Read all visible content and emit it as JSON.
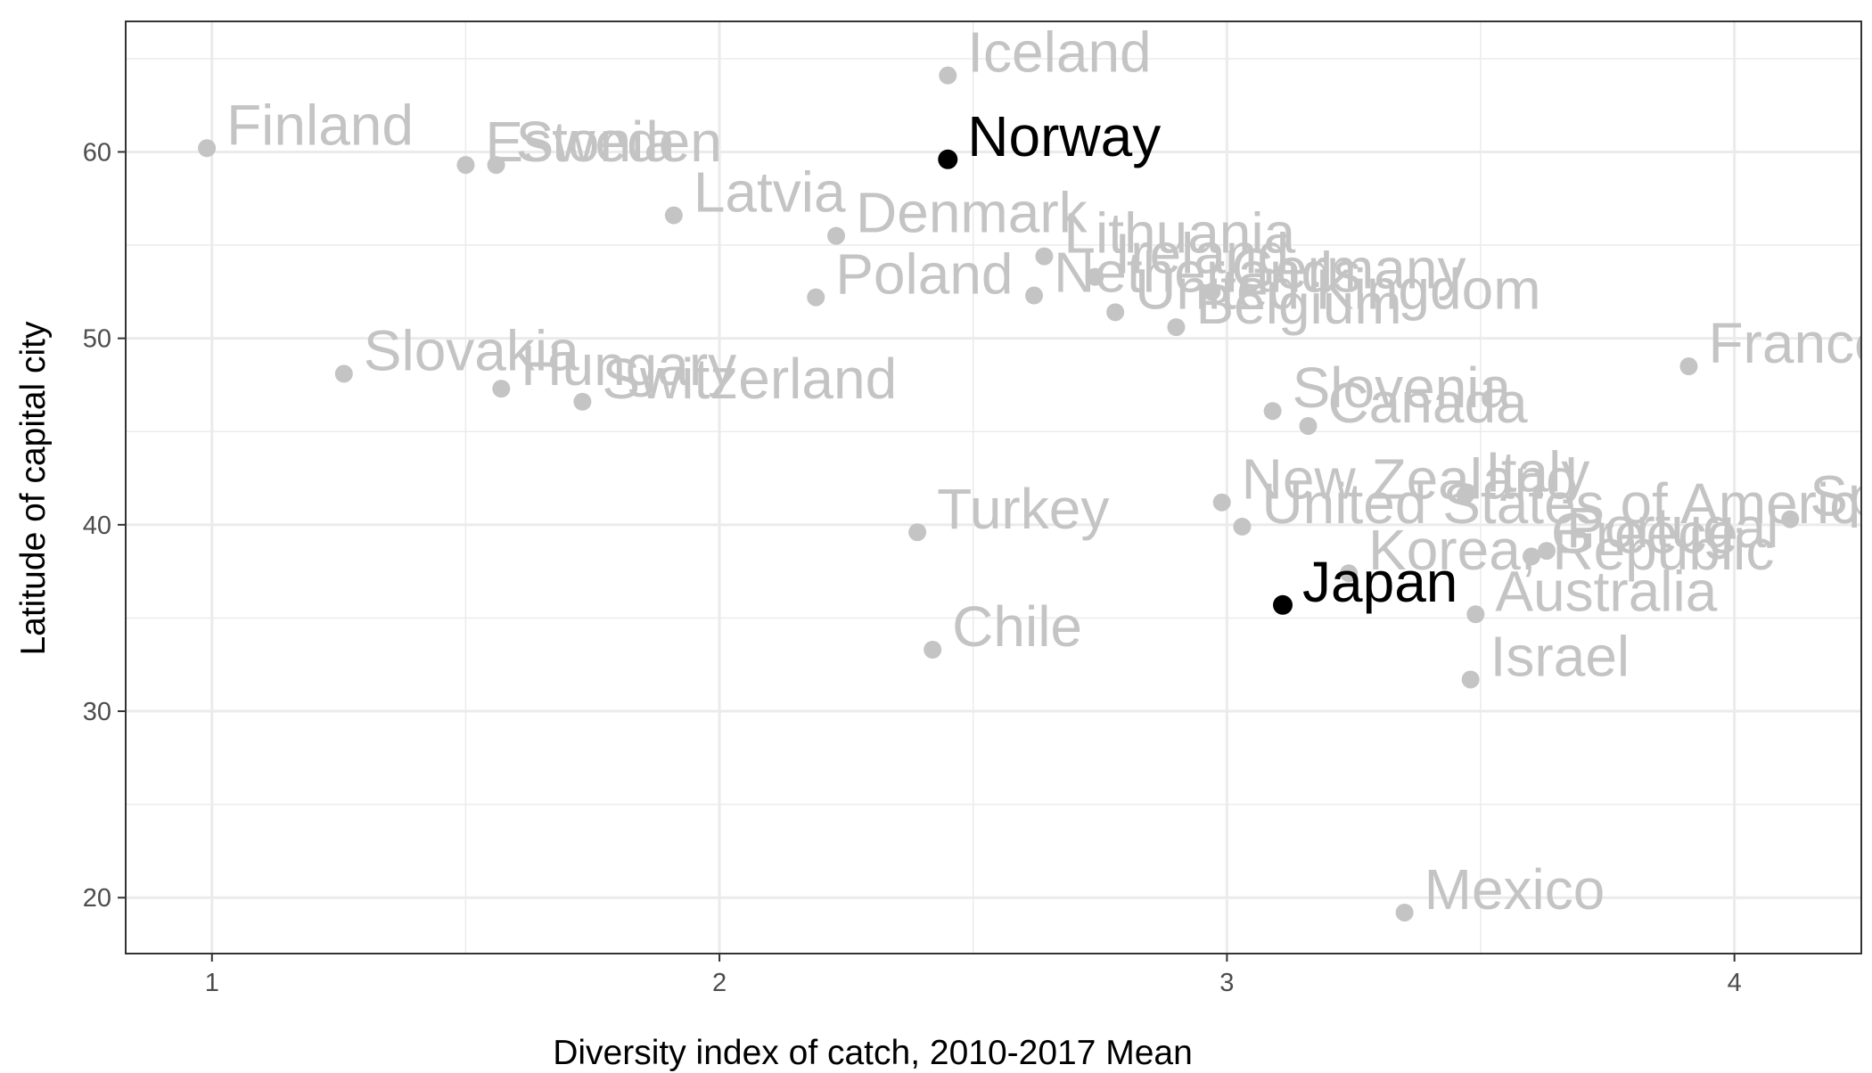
{
  "chart_data": {
    "type": "scatter",
    "xlabel": "Diversity index of catch, 2010-2017 Mean",
    "ylabel": "Latitude of capital city",
    "xlim": [
      0.83,
      4.25
    ],
    "ylim": [
      17,
      67
    ],
    "x_ticks": [
      1,
      2,
      3,
      4
    ],
    "y_ticks": [
      20,
      30,
      40,
      50,
      60
    ],
    "grid": true,
    "legend": "none",
    "colors": {
      "highlight": "#000000",
      "muted": "#c4c4c4",
      "grid": "#ebebeb",
      "panel_border": "#333333"
    },
    "points": [
      {
        "label": "Iceland",
        "x": 2.45,
        "y": 64.1,
        "highlight": false
      },
      {
        "label": "Finland",
        "x": 0.99,
        "y": 60.2,
        "highlight": false
      },
      {
        "label": "Estonia",
        "x": 1.5,
        "y": 59.3,
        "highlight": false
      },
      {
        "label": "Sweden",
        "x": 1.56,
        "y": 59.3,
        "highlight": false
      },
      {
        "label": "Norway",
        "x": 2.45,
        "y": 59.6,
        "highlight": true
      },
      {
        "label": "Latvia",
        "x": 1.91,
        "y": 56.6,
        "highlight": false
      },
      {
        "label": "Denmark",
        "x": 2.23,
        "y": 55.5,
        "highlight": false
      },
      {
        "label": "Lithuania",
        "x": 2.64,
        "y": 54.4,
        "highlight": false
      },
      {
        "label": "Ireland",
        "x": 2.74,
        "y": 53.3,
        "highlight": false
      },
      {
        "label": "Poland",
        "x": 2.19,
        "y": 52.2,
        "highlight": false
      },
      {
        "label": "Netherlands",
        "x": 2.62,
        "y": 52.3,
        "highlight": false
      },
      {
        "label": "Germany",
        "x": 2.97,
        "y": 52.5,
        "highlight": false
      },
      {
        "label": "United Kingdom",
        "x": 2.78,
        "y": 51.4,
        "highlight": false
      },
      {
        "label": "Belgium",
        "x": 2.9,
        "y": 50.6,
        "highlight": false
      },
      {
        "label": "France",
        "x": 3.91,
        "y": 48.5,
        "highlight": false
      },
      {
        "label": "Slovakia",
        "x": 1.26,
        "y": 48.1,
        "highlight": false
      },
      {
        "label": "Hungary",
        "x": 1.57,
        "y": 47.3,
        "highlight": false
      },
      {
        "label": "Switzerland",
        "x": 1.73,
        "y": 46.6,
        "highlight": false
      },
      {
        "label": "Slovenia",
        "x": 3.09,
        "y": 46.1,
        "highlight": false
      },
      {
        "label": "Canada",
        "x": 3.16,
        "y": 45.3,
        "highlight": false
      },
      {
        "label": "New Zealand",
        "x": 2.99,
        "y": 41.2,
        "highlight": false
      },
      {
        "label": "Italy",
        "x": 3.47,
        "y": 41.6,
        "highlight": false
      },
      {
        "label": "United States of America",
        "x": 3.03,
        "y": 39.9,
        "highlight": false
      },
      {
        "label": "Spain",
        "x": 4.11,
        "y": 40.3,
        "highlight": false
      },
      {
        "label": "Turkey",
        "x": 2.39,
        "y": 39.6,
        "highlight": false
      },
      {
        "label": "Portugal",
        "x": 3.63,
        "y": 38.6,
        "highlight": false
      },
      {
        "label": "Greece",
        "x": 3.6,
        "y": 38.3,
        "highlight": false
      },
      {
        "label": "Korea, Republic",
        "x": 3.24,
        "y": 37.4,
        "highlight": false
      },
      {
        "label": "Japan",
        "x": 3.11,
        "y": 35.7,
        "highlight": true
      },
      {
        "label": "Australia",
        "x": 3.49,
        "y": 35.2,
        "highlight": false
      },
      {
        "label": "Chile",
        "x": 2.42,
        "y": 33.3,
        "highlight": false
      },
      {
        "label": "Israel",
        "x": 3.48,
        "y": 31.7,
        "highlight": false
      },
      {
        "label": "Mexico",
        "x": 3.35,
        "y": 19.2,
        "highlight": false
      }
    ]
  }
}
